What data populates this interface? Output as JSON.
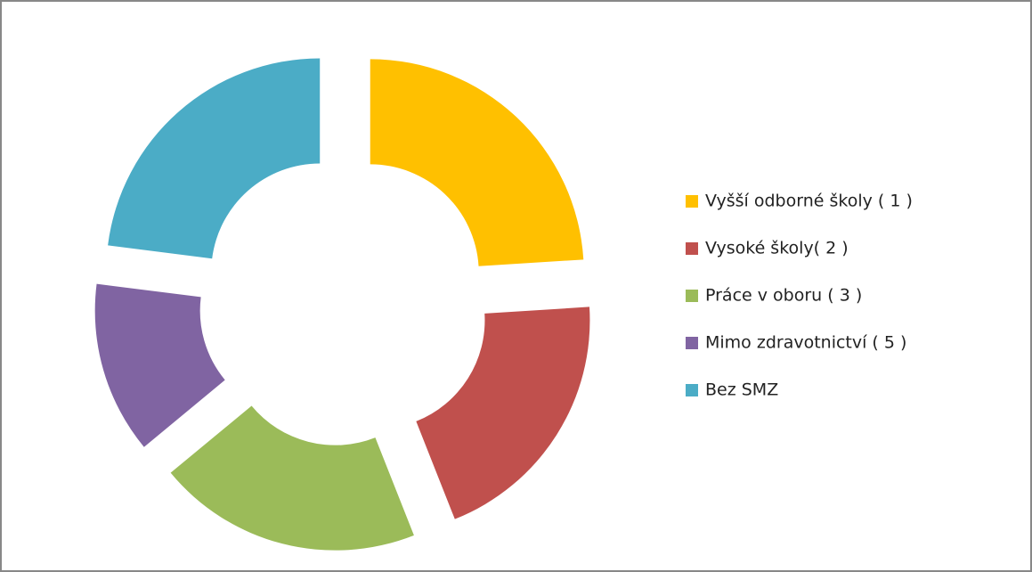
{
  "chart_data": {
    "type": "donut",
    "categories": [
      "Vyšší odborné školy  ( 1 )",
      "Vysoké školy( 2 )",
      "Práce v oboru ( 3 )",
      "Mimo zdravotnictví ( 5 )",
      "Bez SMZ"
    ],
    "values": [
      24,
      20,
      20,
      13,
      23
    ],
    "colors": [
      "#ffc000",
      "#c0504d",
      "#9bbb59",
      "#8064a2",
      "#4bacc6"
    ],
    "legend": "right"
  }
}
